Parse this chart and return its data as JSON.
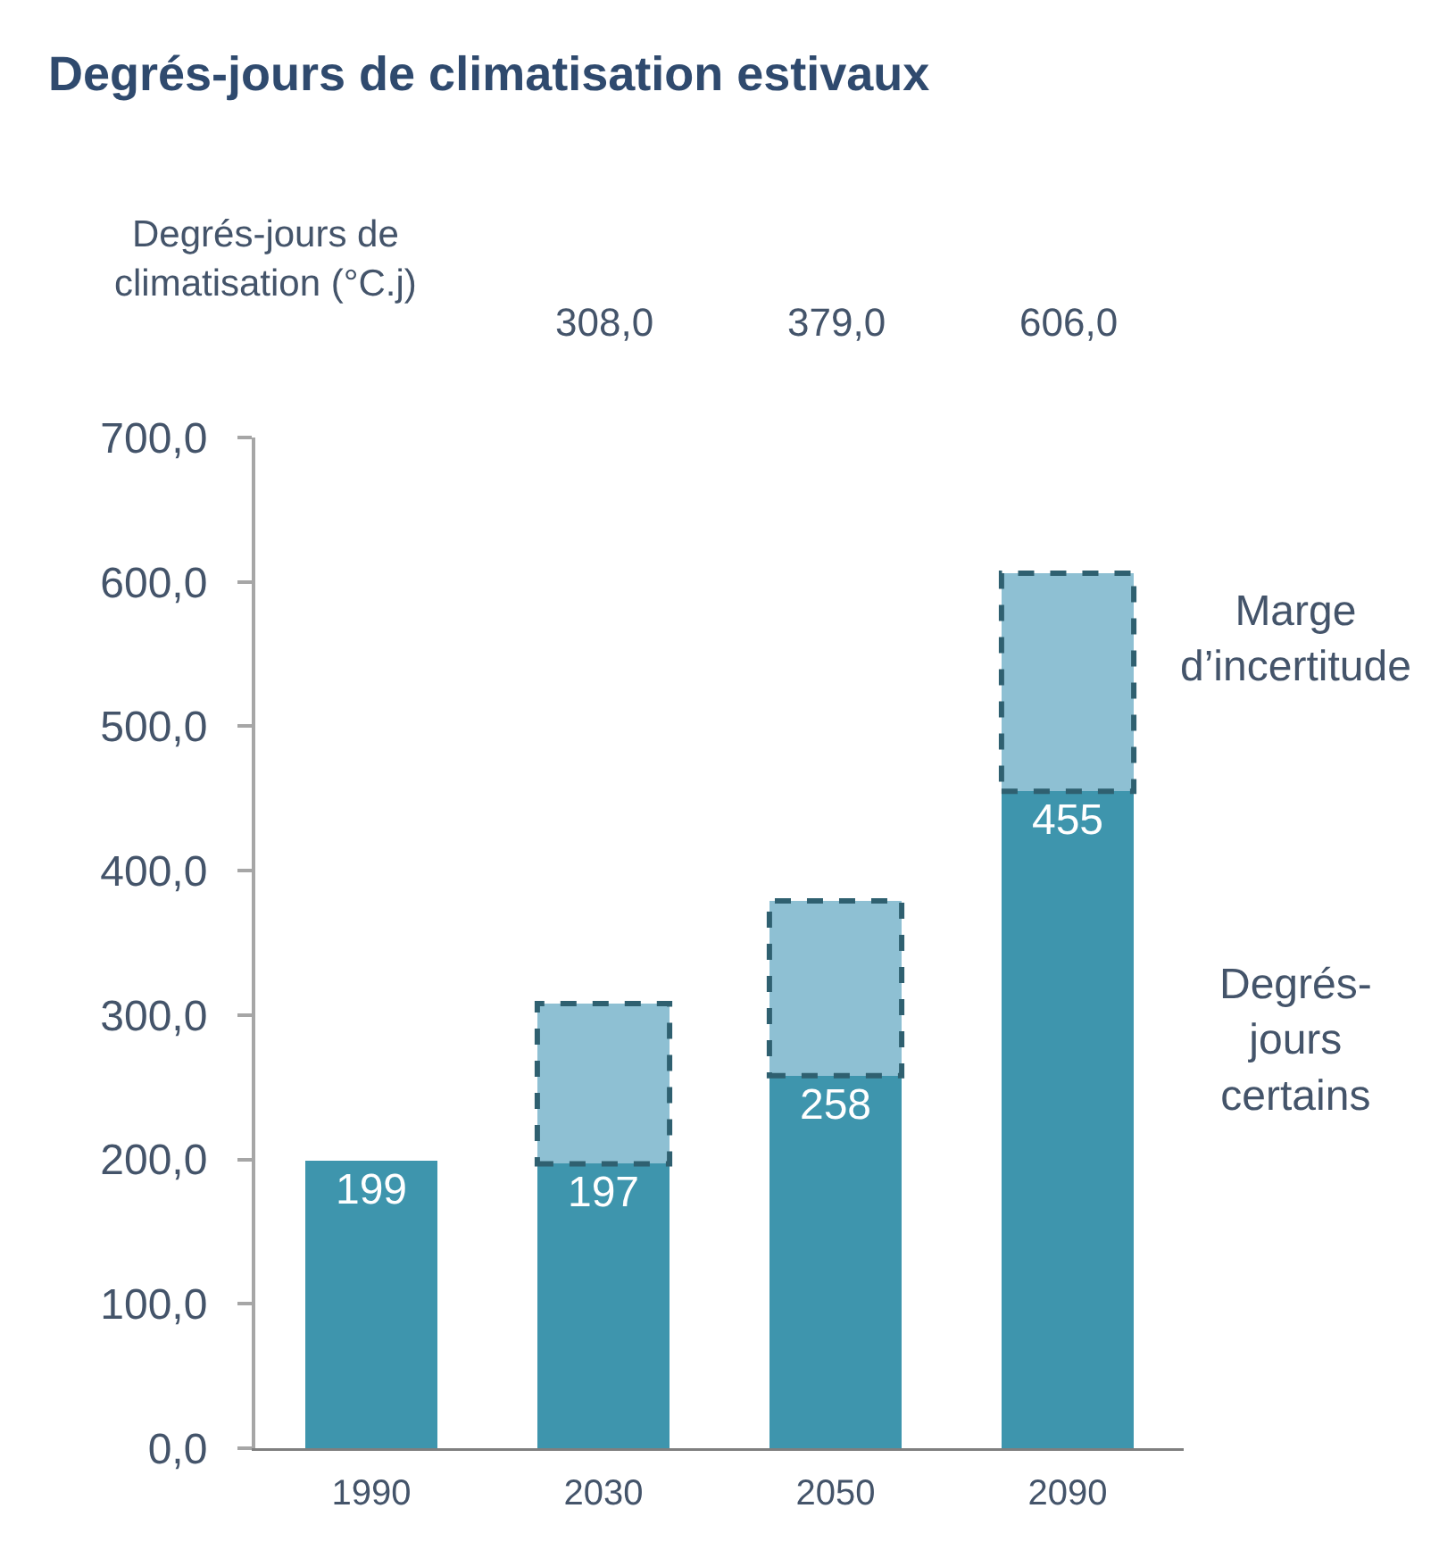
{
  "chart_data": {
    "type": "bar",
    "title": "Degrés-jours de climatisation estivaux",
    "annotations": [
      "Degrés-jours de climatisation (°C.j)",
      "308,0",
      "379,0",
      "606,0"
    ],
    "categories": [
      "1990",
      "2030",
      "2050",
      "2090"
    ],
    "stacked": true,
    "series": [
      {
        "name": "Degrés-jours certains",
        "color": "#3e95ad",
        "values": [
          199,
          197,
          258,
          455
        ],
        "value_labels": [
          "199",
          "197",
          "258",
          "455"
        ]
      },
      {
        "name": "Marge d’incertitude",
        "color": "#8ec0d3",
        "values": [
          null,
          111,
          121,
          151
        ],
        "line_style": "dashed"
      }
    ],
    "ylim": [
      0,
      700
    ],
    "yticks": [
      {
        "value": 0,
        "label": "0,0"
      },
      {
        "value": 100,
        "label": "100,0"
      },
      {
        "value": 200,
        "label": "200,0"
      },
      {
        "value": 300,
        "label": "300,0"
      },
      {
        "value": 400,
        "label": "400,0"
      },
      {
        "value": 500,
        "label": "500,0"
      },
      {
        "value": 600,
        "label": "600,0"
      },
      {
        "value": 700,
        "label": "700,0"
      }
    ],
    "legend": false
  }
}
